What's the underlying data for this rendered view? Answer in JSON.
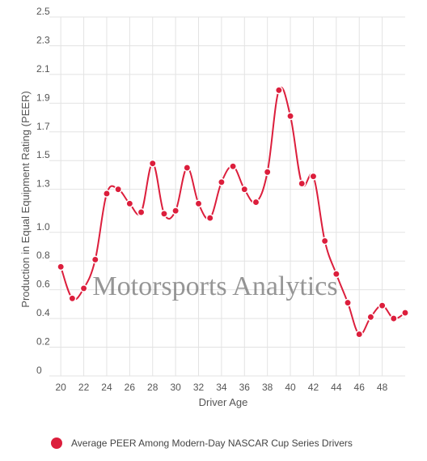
{
  "chart_data": {
    "type": "line",
    "xlabel": "Driver Age",
    "ylabel": "Production in Equal Equipment Rating (PEER)",
    "xlim": [
      19,
      50
    ],
    "ylim": [
      0,
      2.5
    ],
    "x_ticks": [
      20,
      22,
      24,
      26,
      28,
      30,
      32,
      34,
      36,
      38,
      40,
      42,
      44,
      46,
      48
    ],
    "y_ticks": [
      {
        "value": 0,
        "label": "0"
      },
      {
        "value": 0.2,
        "label": "0.2"
      },
      {
        "value": 0.4,
        "label": "0.4"
      },
      {
        "value": 0.6,
        "label": "0.6"
      },
      {
        "value": 0.8,
        "label": "0.8"
      },
      {
        "value": 1.0,
        "label": "1.0"
      },
      {
        "value": 1.3,
        "label": "1.3"
      },
      {
        "value": 1.5,
        "label": "1.5"
      },
      {
        "value": 1.7,
        "label": "1.7"
      },
      {
        "value": 1.9,
        "label": "1.9"
      },
      {
        "value": 2.1,
        "label": "2.1"
      },
      {
        "value": 2.3,
        "label": "2.3"
      },
      {
        "value": 2.5,
        "label": "2.5"
      }
    ],
    "grid": true,
    "legend_position": "bottom",
    "series": [
      {
        "name": "Average PEER Among Modern-Day NASCAR Cup Series Drivers",
        "color": "#dc1e3c",
        "x": [
          20,
          21,
          22,
          23,
          24,
          25,
          26,
          27,
          28,
          29,
          30,
          31,
          32,
          33,
          34,
          35,
          36,
          37,
          38,
          39,
          40,
          41,
          42,
          43,
          44,
          45,
          46,
          47,
          48,
          49,
          50
        ],
        "y": [
          0.76,
          0.54,
          0.61,
          0.81,
          1.27,
          1.3,
          1.2,
          1.14,
          1.48,
          1.13,
          1.15,
          1.45,
          1.2,
          1.1,
          1.35,
          1.46,
          1.3,
          1.21,
          1.42,
          1.99,
          1.81,
          1.34,
          1.39,
          0.94,
          0.71,
          0.51,
          0.29,
          0.41,
          0.49,
          0.4,
          0.44
        ]
      }
    ]
  },
  "watermark": "Motorsports Analytics"
}
